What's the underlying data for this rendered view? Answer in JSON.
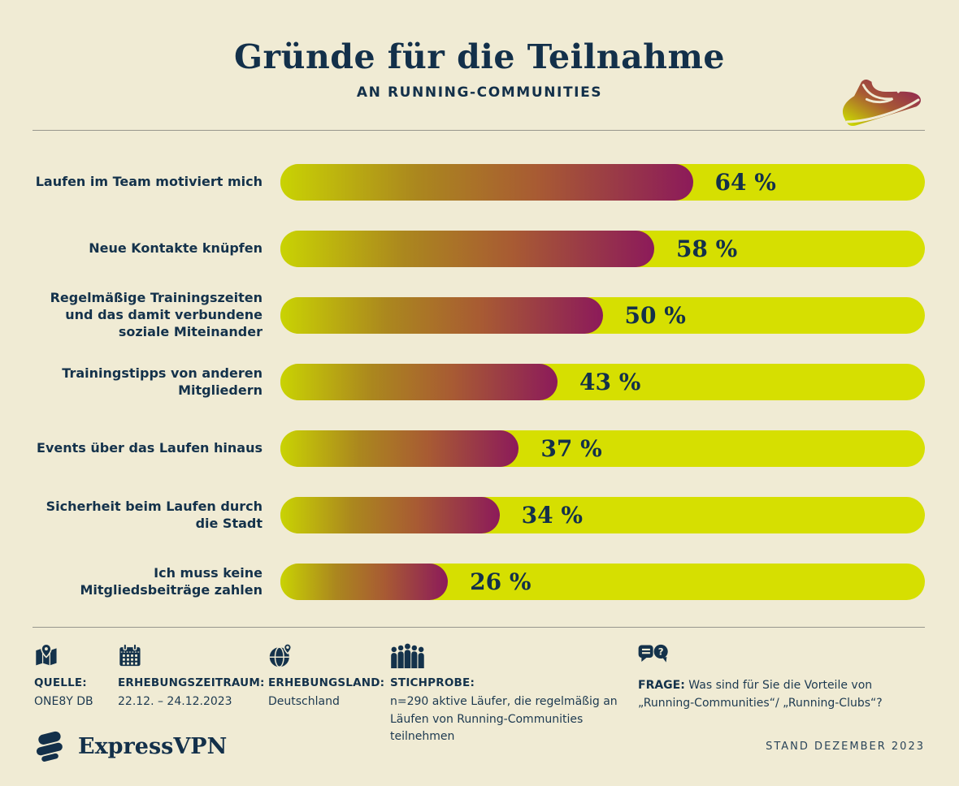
{
  "colors": {
    "background": "#f0ebd4",
    "navy": "#14324b",
    "track_chartreuse": "#d6df01",
    "gradient_start": "#c9d303",
    "gradient_mid": "#a85b33",
    "gradient_end": "#8c1a5a",
    "divider_gray": "#97968d"
  },
  "header": {
    "title": "Gründe für die Teilnahme",
    "subtitle": "AN RUNNING-COMMUNITIES",
    "decorative_icon": "running-shoe-icon"
  },
  "chart_data": {
    "type": "bar",
    "orientation": "horizontal",
    "unit": "%",
    "xlim": [
      0,
      100
    ],
    "grid": false,
    "legend": false,
    "categories": [
      "Laufen im Team motiviert mich",
      "Neue Kontakte knüpfen",
      "Regelmäßige Trainingszeiten und das damit verbundene soziale Miteinander",
      "Trainingstipps von anderen Mitgliedern",
      "Events über das Laufen hinaus",
      "Sicherheit beim Laufen durch die Stadt",
      "Ich muss keine Mitgliedsbeiträge zahlen"
    ],
    "values": [
      64,
      58,
      50,
      43,
      37,
      34,
      26
    ],
    "value_labels": [
      "64 %",
      "58 %",
      "50 %",
      "43 %",
      "37 %",
      "34 %",
      "26 %"
    ]
  },
  "footer": {
    "meta": [
      {
        "icon": "map-pin-icon",
        "label": "QUELLE:",
        "value": "ONE8Y DB"
      },
      {
        "icon": "calendar-icon",
        "label": "ERHEBUNGSZEITRAUM:",
        "value": "22.12. – 24.12.2023"
      },
      {
        "icon": "globe-pin-icon",
        "label": "ERHEBUNGSLAND:",
        "value": "Deutschland"
      },
      {
        "icon": "people-group-icon",
        "label": "STICHPROBE:",
        "value": "n=290 aktive Läufer, die regelmäßig an Läufen von Running-Communities teilnehmen"
      }
    ],
    "question": {
      "icon": "speech-bubbles-icon",
      "label": "FRAGE:",
      "text": " Was sind für Sie die Vorteile von „Running-Communities“/ „Running-Clubs“?"
    }
  },
  "branding": {
    "logo": "expressvpn-logo",
    "logo_text": "ExpressVPN",
    "stand": "STAND DEZEMBER 2023"
  }
}
